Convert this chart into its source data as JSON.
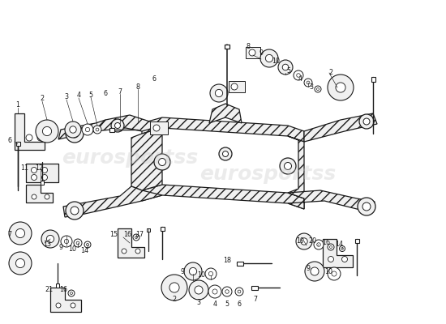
{
  "background_color": "#ffffff",
  "figsize": [
    5.5,
    4.0
  ],
  "dpi": 100,
  "watermark_text": "eurosportss",
  "watermark_color": "#c8c8c8",
  "watermark_alpha": 0.35,
  "line_color": "#1a1a1a",
  "part_fill": "#f0f0f0",
  "hatch_color": "#555555",
  "labels": {
    "top_left_row": [
      [
        "1",
        22,
        133
      ],
      [
        "2",
        52,
        125
      ],
      [
        "3",
        82,
        123
      ],
      [
        "4",
        97,
        121
      ],
      [
        "5",
        112,
        120
      ],
      [
        "6",
        127,
        119
      ],
      [
        "7",
        148,
        116
      ],
      [
        "8",
        170,
        110
      ],
      [
        "6",
        190,
        100
      ]
    ],
    "top_right_row": [
      [
        "8",
        293,
        62
      ],
      [
        "9",
        312,
        68
      ],
      [
        "10",
        325,
        73
      ],
      [
        "5",
        338,
        82
      ],
      [
        "4",
        352,
        90
      ],
      [
        "3",
        368,
        98
      ],
      [
        "2",
        406,
        90
      ]
    ],
    "left_col": [
      [
        "6",
        18,
        175
      ],
      [
        "11",
        32,
        210
      ],
      [
        "12",
        50,
        210
      ],
      [
        "7",
        18,
        255
      ]
    ],
    "bottom_left": [
      [
        "7",
        18,
        295
      ],
      [
        "13",
        55,
        300
      ],
      [
        "9",
        72,
        303
      ],
      [
        "10",
        85,
        305
      ],
      [
        "14",
        98,
        306
      ]
    ],
    "bottom_center_row": [
      [
        "15",
        152,
        293
      ],
      [
        "16",
        168,
        293
      ],
      [
        "17",
        183,
        293
      ]
    ],
    "bottom_center2": [
      [
        "9",
        215,
        338
      ],
      [
        "10",
        232,
        340
      ],
      [
        "18",
        275,
        325
      ]
    ],
    "bottom_far_left": [
      [
        "21",
        62,
        362
      ],
      [
        "16",
        80,
        362
      ]
    ],
    "bottom_explode": [
      [
        "2",
        175,
        355
      ],
      [
        "3",
        200,
        358
      ],
      [
        "4",
        215,
        360
      ],
      [
        "5",
        228,
        360
      ],
      [
        "6",
        244,
        360
      ],
      [
        "7",
        260,
        362
      ]
    ],
    "bottom_right": [
      [
        "19",
        378,
        303
      ],
      [
        "20",
        392,
        303
      ],
      [
        "16",
        407,
        305
      ],
      [
        "14",
        423,
        305
      ]
    ],
    "bottom_right2": [
      [
        "9",
        388,
        335
      ],
      [
        "10",
        410,
        337
      ]
    ],
    "center_bolt": [
      [
        "17",
        183,
        293
      ]
    ]
  }
}
